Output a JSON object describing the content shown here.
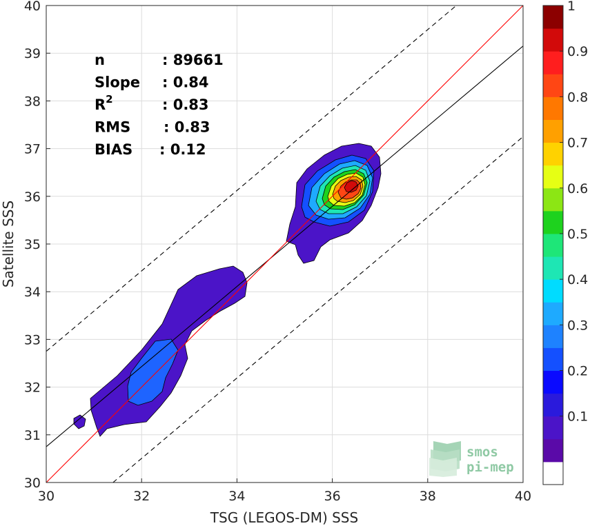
{
  "chart_data": {
    "type": "contour",
    "xlabel": "TSG (LEGOS-DM) SSS",
    "ylabel": "Satellite SSS",
    "xlim": [
      30,
      40
    ],
    "ylim": [
      30,
      40
    ],
    "xticks": [
      30,
      32,
      34,
      36,
      38,
      40
    ],
    "yticks": [
      30,
      31,
      32,
      33,
      34,
      35,
      36,
      37,
      38,
      39,
      40
    ],
    "grid": true,
    "stats": [
      {
        "label": "n",
        "value": ": 89661"
      },
      {
        "label": "Slope",
        "value": ": 0.84"
      },
      {
        "label": "R",
        "sup": "2",
        "value": ": 0.83"
      },
      {
        "label": "RMS",
        "value": ": 0.83"
      },
      {
        "label": "BIAS",
        "value": ": 0.12"
      }
    ],
    "lines": {
      "one_to_one": {
        "x": [
          30,
          40
        ],
        "y": [
          30,
          40
        ],
        "color": "#ff0000"
      },
      "fit": {
        "x": [
          30,
          40
        ],
        "y": [
          30.75,
          39.15
        ],
        "color": "#000000"
      },
      "upper_bound": {
        "x": [
          30,
          38.6
        ],
        "y": [
          32.75,
          40
        ],
        "color": "#000000",
        "style": "dashed"
      },
      "lower_bound": {
        "x": [
          31.4,
          40
        ],
        "y": [
          30,
          37.25
        ],
        "color": "#000000",
        "style": "dashed"
      }
    },
    "peak": {
      "x": 36.4,
      "y": 36.3
    },
    "colorbar": {
      "ticks": [
        0.1,
        0.2,
        0.3,
        0.4,
        0.5,
        0.6,
        0.7,
        0.8,
        0.9,
        1
      ],
      "tick_labels": [
        "0.1",
        "0.2",
        "0.3",
        "0.4",
        "0.5",
        "0.6",
        "0.7",
        "0.8",
        "0.9",
        "1"
      ],
      "colors": [
        "#ffffff",
        "#5a0aa8",
        "#4b14c8",
        "#2a1adc",
        "#0a0aff",
        "#1450ff",
        "#1e82ff",
        "#1eaaff",
        "#00dcff",
        "#1ee6b4",
        "#1ee678",
        "#1ed21e",
        "#8ce614",
        "#e6ff14",
        "#ffd200",
        "#ffa000",
        "#ff7800",
        "#ff4614",
        "#ff1e1e",
        "#d20a0a",
        "#8c0000"
      ]
    },
    "watermark": {
      "line1": "smos",
      "line2": "pi-mep"
    }
  }
}
